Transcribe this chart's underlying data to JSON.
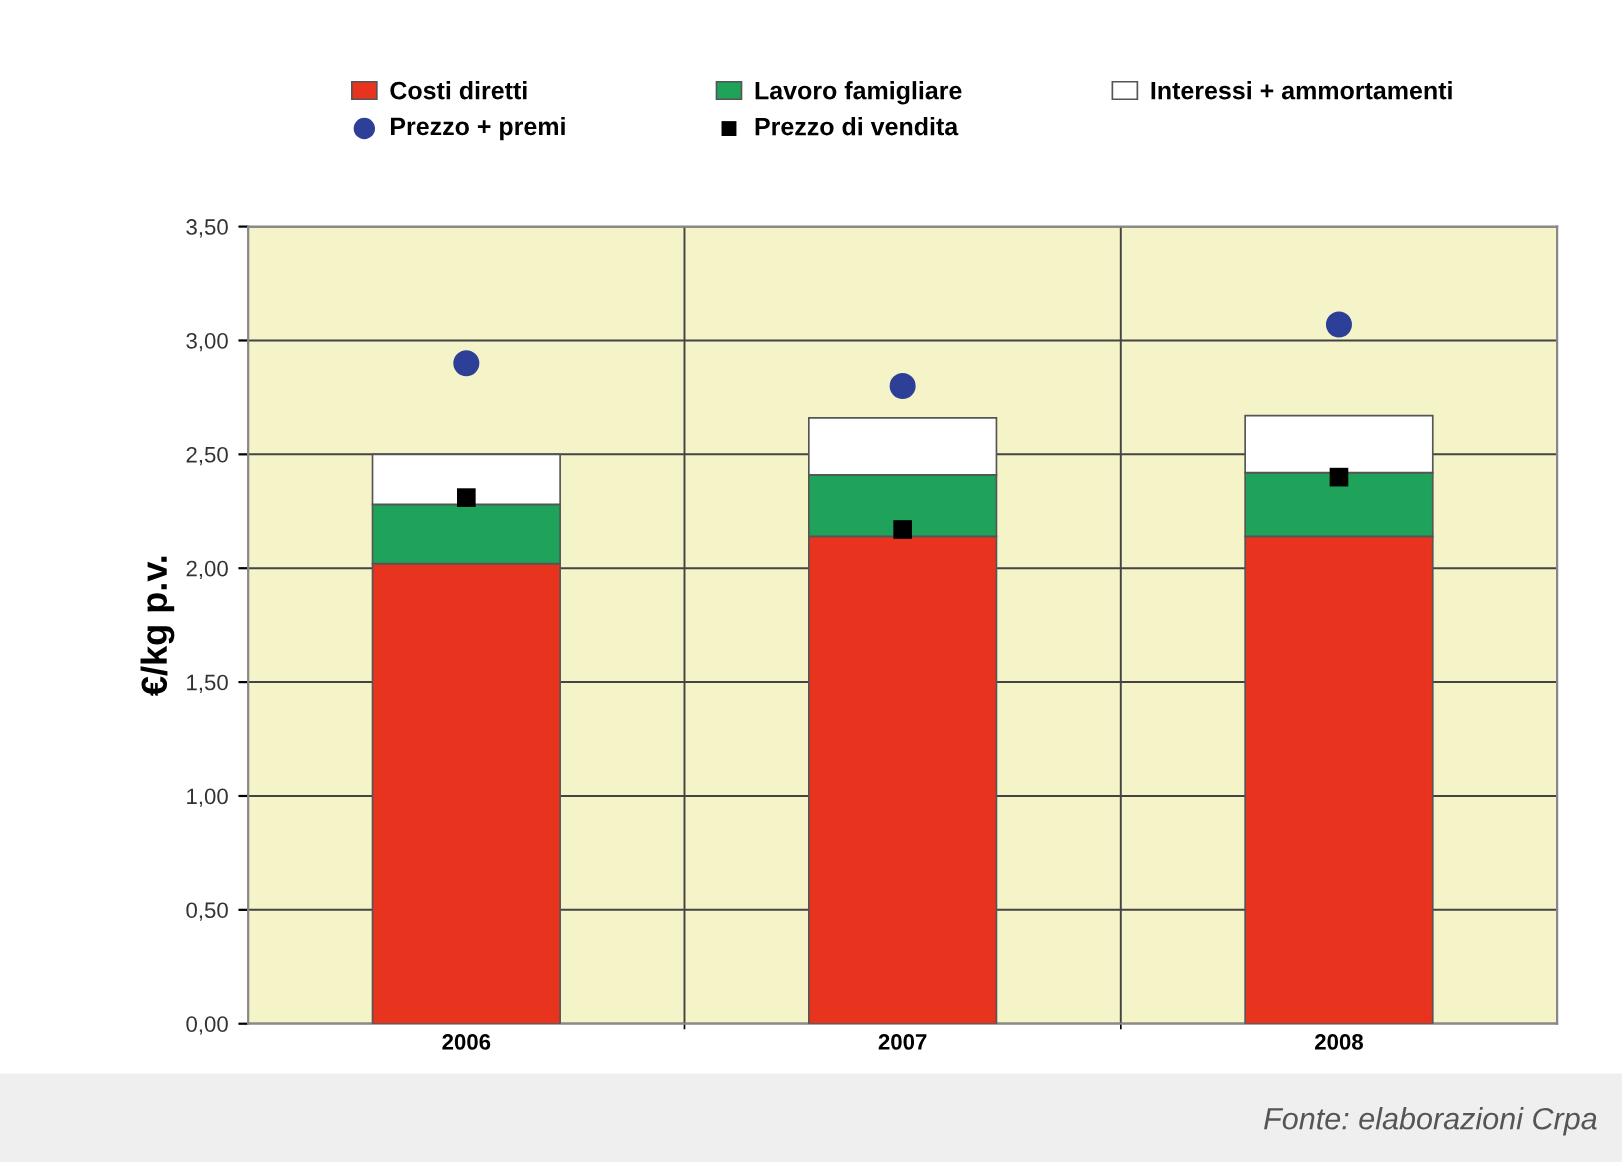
{
  "chart_data": {
    "type": "bar",
    "stacked": true,
    "ylabel": "€/kg p.v.",
    "categories": [
      "2006",
      "2007",
      "2008"
    ],
    "series": [
      {
        "name": "Costi diretti",
        "color": "#e8341f",
        "values": [
          2.02,
          2.14,
          2.14
        ]
      },
      {
        "name": "Lavoro famigliare",
        "color": "#1fa35a",
        "values": [
          0.26,
          0.27,
          0.28
        ]
      },
      {
        "name": "Interessi + ammortamenti",
        "color": "#ffffff",
        "values": [
          0.22,
          0.25,
          0.25
        ]
      },
      {
        "name": "Prezzo + premi",
        "type": "scatter",
        "marker": "circle",
        "color": "#2e3f97",
        "values": [
          2.9,
          2.8,
          3.07
        ]
      },
      {
        "name": "Prezzo di vendita",
        "type": "scatter",
        "marker": "square",
        "color": "#000000",
        "values": [
          2.31,
          2.17,
          2.4
        ]
      }
    ],
    "ylim": [
      0,
      3.5
    ],
    "yticks": [
      {
        "value": 0,
        "label": "0,00"
      },
      {
        "value": 0.5,
        "label": "0,50"
      },
      {
        "value": 1,
        "label": "1,00"
      },
      {
        "value": 1.5,
        "label": "1,50"
      },
      {
        "value": 2,
        "label": "2,00"
      },
      {
        "value": 2.5,
        "label": "2,50"
      },
      {
        "value": 3,
        "label": "3,00"
      },
      {
        "value": 3.5,
        "label": "3,50"
      }
    ],
    "grid": true,
    "legend": "top",
    "annotations": [
      "Fonte: elaborazioni Crpa"
    ]
  }
}
